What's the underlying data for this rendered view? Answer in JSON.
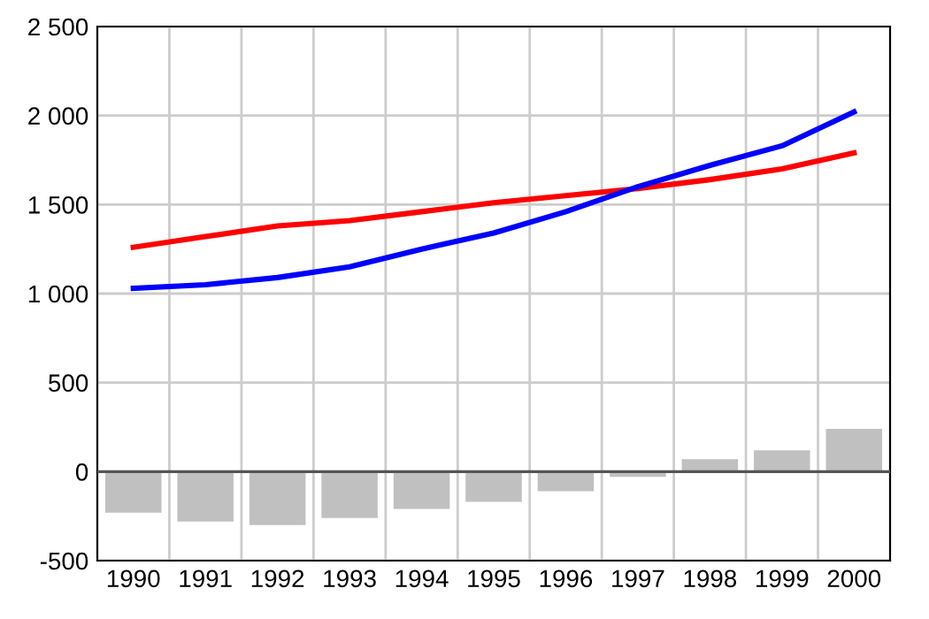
{
  "chart_data": {
    "type": "line",
    "categories": [
      "1990",
      "1991",
      "1992",
      "1993",
      "1994",
      "1995",
      "1996",
      "1997",
      "1998",
      "1999",
      "2000"
    ],
    "series": [
      {
        "type": "bar",
        "color": "#c0c0c0",
        "values": [
          -230,
          -280,
          -300,
          -260,
          -210,
          -170,
          -110,
          -30,
          70,
          120,
          240
        ]
      },
      {
        "color": "#ff0000",
        "values": [
          1260,
          1320,
          1380,
          1410,
          1460,
          1510,
          1550,
          1590,
          1640,
          1700,
          1790
        ]
      },
      {
        "color": "#0000ff",
        "values": [
          1030,
          1050,
          1090,
          1150,
          1250,
          1340,
          1460,
          1600,
          1720,
          1830,
          2020
        ]
      }
    ],
    "ylim": [
      -500,
      2500
    ],
    "yticks": [
      {
        "value": -500,
        "label": "-500"
      },
      0,
      500,
      {
        "value": 1000,
        "label": "1 000"
      },
      {
        "value": 1500,
        "label": "1 500"
      },
      {
        "value": 2000,
        "label": "2 000"
      },
      {
        "value": 2500,
        "label": "2 500"
      }
    ],
    "ref_lines": [
      {
        "axis": "y",
        "value": 0,
        "color": "#555555"
      }
    ],
    "grid": true,
    "legend": false
  }
}
